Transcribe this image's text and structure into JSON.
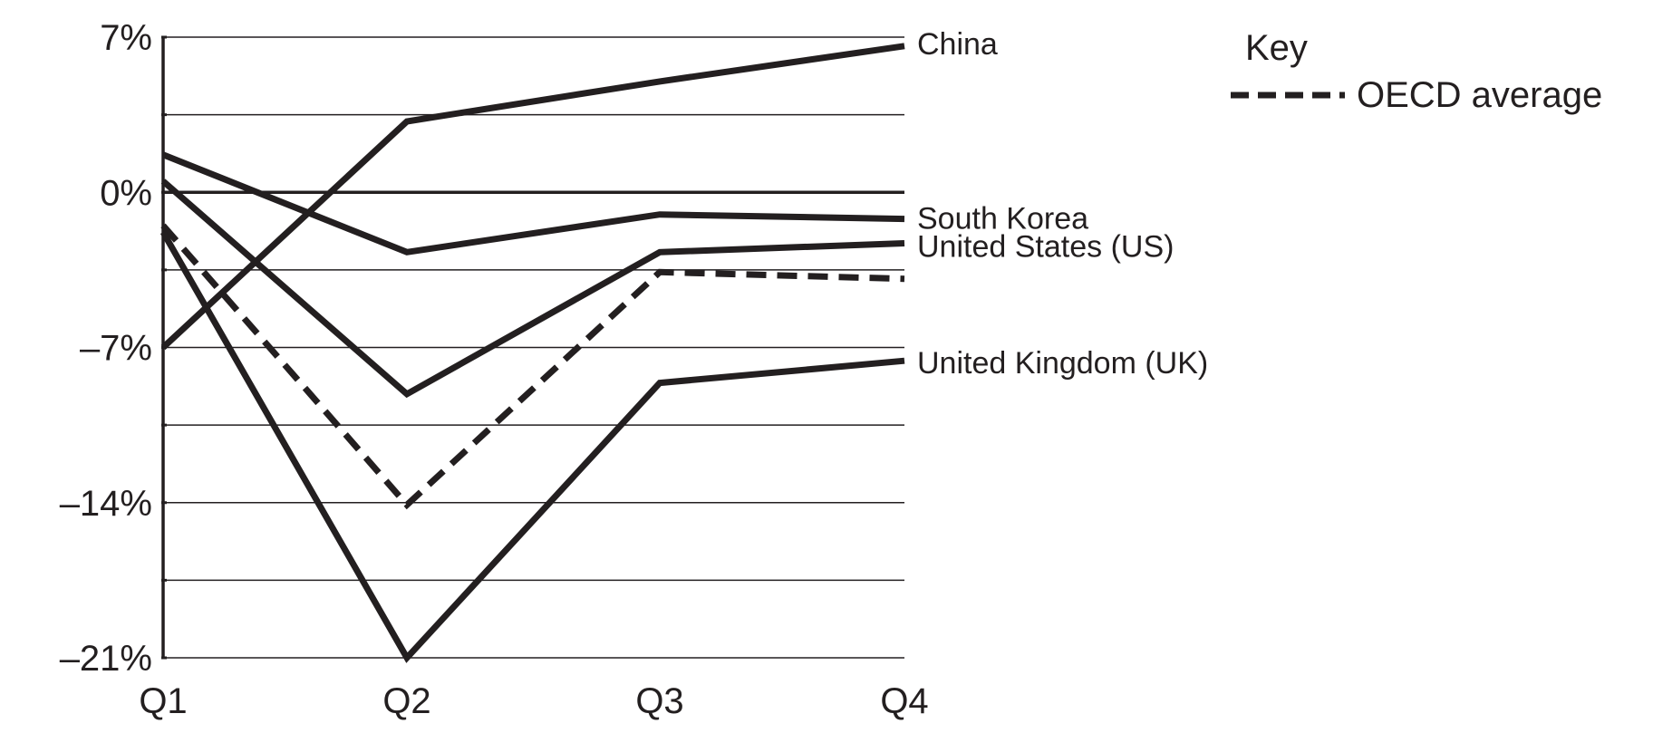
{
  "chart_data": {
    "type": "line",
    "categories": [
      "Q1",
      "Q2",
      "Q3",
      "Q4"
    ],
    "ylim": [
      -21,
      7
    ],
    "y_ticks": [
      {
        "value": 7,
        "label": "7%"
      },
      {
        "value": 3.5,
        "label": ""
      },
      {
        "value": 0,
        "label": "0%"
      },
      {
        "value": -3.5,
        "label": ""
      },
      {
        "value": -7,
        "label": "–7%"
      },
      {
        "value": -10.5,
        "label": ""
      },
      {
        "value": -14,
        "label": "–14%"
      },
      {
        "value": -17.5,
        "label": ""
      },
      {
        "value": -21,
        "label": "–21%"
      }
    ],
    "grid": true,
    "series": [
      {
        "name": "China",
        "values": [
          -7,
          3.2,
          5,
          6.6
        ],
        "dashed": false
      },
      {
        "name": "South Korea",
        "values": [
          1.7,
          -2.7,
          -1,
          -1.2
        ],
        "dashed": false
      },
      {
        "name": "United States (US)",
        "values": [
          0.5,
          -9.1,
          -2.7,
          -2.3
        ],
        "dashed": false
      },
      {
        "name": "OECD average",
        "values": [
          -1.5,
          -14.1,
          -3.6,
          -3.9
        ],
        "dashed": true
      },
      {
        "name": "United Kingdom (UK)",
        "values": [
          -1.8,
          -21,
          -8.6,
          -7.6
        ],
        "dashed": false
      }
    ],
    "legend": {
      "title": "Key",
      "position": "top-right",
      "entries": [
        "OECD average"
      ]
    },
    "line_color": "#231f20",
    "grid_color": "#231f20"
  }
}
